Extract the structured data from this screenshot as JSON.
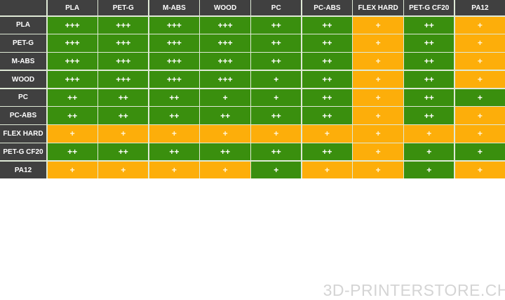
{
  "colors": {
    "header": "#404040",
    "green": "#3a8f0e",
    "orange": "#fdae0a"
  },
  "columns": [
    "PLA",
    "PET-G",
    "M-ABS",
    "WOOD",
    "PC",
    "PC-ABS",
    "FLEX HARD",
    "PET-G CF20",
    "PA12"
  ],
  "rows": [
    {
      "label": "PLA",
      "cells": [
        [
          "+++",
          "green"
        ],
        [
          "+++",
          "green"
        ],
        [
          "+++",
          "green"
        ],
        [
          "+++",
          "green"
        ],
        [
          "++",
          "green"
        ],
        [
          "++",
          "green"
        ],
        [
          "+",
          "orange"
        ],
        [
          "++",
          "green"
        ],
        [
          "+",
          "orange"
        ]
      ]
    },
    {
      "label": "PET-G",
      "cells": [
        [
          "+++",
          "green"
        ],
        [
          "+++",
          "green"
        ],
        [
          "+++",
          "green"
        ],
        [
          "+++",
          "green"
        ],
        [
          "++",
          "green"
        ],
        [
          "++",
          "green"
        ],
        [
          "+",
          "orange"
        ],
        [
          "++",
          "green"
        ],
        [
          "+",
          "orange"
        ]
      ]
    },
    {
      "label": "M-ABS",
      "cells": [
        [
          "+++",
          "green"
        ],
        [
          "+++",
          "green"
        ],
        [
          "+++",
          "green"
        ],
        [
          "+++",
          "green"
        ],
        [
          "++",
          "green"
        ],
        [
          "++",
          "green"
        ],
        [
          "+",
          "orange"
        ],
        [
          "++",
          "green"
        ],
        [
          "+",
          "orange"
        ]
      ]
    },
    {
      "label": "WOOD",
      "cells": [
        [
          "+++",
          "green"
        ],
        [
          "+++",
          "green"
        ],
        [
          "+++",
          "green"
        ],
        [
          "+++",
          "green"
        ],
        [
          "+",
          "green"
        ],
        [
          "++",
          "green"
        ],
        [
          "+",
          "orange"
        ],
        [
          "++",
          "green"
        ],
        [
          "+",
          "orange"
        ]
      ]
    },
    {
      "label": "PC",
      "cells": [
        [
          "++",
          "green"
        ],
        [
          "++",
          "green"
        ],
        [
          "++",
          "green"
        ],
        [
          "+",
          "green"
        ],
        [
          "+",
          "green"
        ],
        [
          "++",
          "green"
        ],
        [
          "+",
          "orange"
        ],
        [
          "++",
          "green"
        ],
        [
          "+",
          "green"
        ]
      ]
    },
    {
      "label": "PC-ABS",
      "cells": [
        [
          "++",
          "green"
        ],
        [
          "++",
          "green"
        ],
        [
          "++",
          "green"
        ],
        [
          "++",
          "green"
        ],
        [
          "++",
          "green"
        ],
        [
          "++",
          "green"
        ],
        [
          "+",
          "orange"
        ],
        [
          "++",
          "green"
        ],
        [
          "+",
          "orange"
        ]
      ]
    },
    {
      "label": "FLEX HARD",
      "cells": [
        [
          "+",
          "orange"
        ],
        [
          "+",
          "orange"
        ],
        [
          "+",
          "orange"
        ],
        [
          "+",
          "orange"
        ],
        [
          "+",
          "orange"
        ],
        [
          "+",
          "orange"
        ],
        [
          "+",
          "orange"
        ],
        [
          "+",
          "orange"
        ],
        [
          "+",
          "orange"
        ]
      ]
    },
    {
      "label": "PET-G CF20",
      "cells": [
        [
          "++",
          "green"
        ],
        [
          "++",
          "green"
        ],
        [
          "++",
          "green"
        ],
        [
          "++",
          "green"
        ],
        [
          "++",
          "green"
        ],
        [
          "++",
          "green"
        ],
        [
          "+",
          "orange"
        ],
        [
          "+",
          "green"
        ],
        [
          "+",
          "green"
        ]
      ]
    },
    {
      "label": "PA12",
      "cells": [
        [
          "+",
          "orange"
        ],
        [
          "+",
          "orange"
        ],
        [
          "+",
          "orange"
        ],
        [
          "+",
          "orange"
        ],
        [
          "+",
          "green"
        ],
        [
          "+",
          "orange"
        ],
        [
          "+",
          "orange"
        ],
        [
          "+",
          "green"
        ],
        [
          "+",
          "orange"
        ]
      ]
    }
  ],
  "watermark": "3D-PRINTERSTORE.CH"
}
